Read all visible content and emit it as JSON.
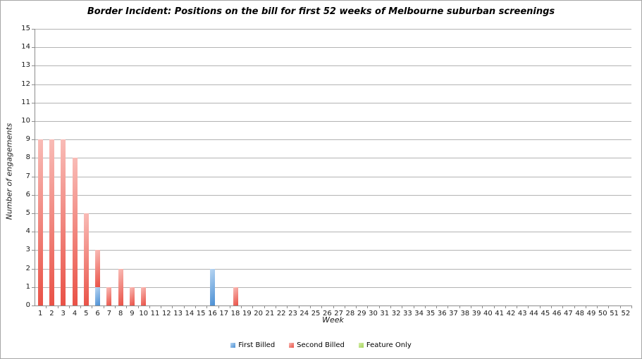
{
  "title": "Border Incident: Positions on the bill for first 52 weeks of Melbourne suburban screenings",
  "chart_data": {
    "type": "bar",
    "stacked": true,
    "title": "Border Incident: Positions on the bill for first 52 weeks of Melbourne suburban screenings",
    "xlabel": "Week",
    "ylabel": "Number of engagements",
    "ylim": [
      0,
      15
    ],
    "ytick_step": 1,
    "grid": true,
    "legend_position": "bottom",
    "categories": [
      1,
      2,
      3,
      4,
      5,
      6,
      7,
      8,
      9,
      10,
      11,
      12,
      13,
      14,
      15,
      16,
      17,
      18,
      19,
      20,
      21,
      22,
      23,
      24,
      25,
      26,
      27,
      28,
      29,
      30,
      31,
      32,
      33,
      34,
      35,
      36,
      37,
      38,
      39,
      40,
      41,
      42,
      43,
      44,
      45,
      46,
      47,
      48,
      49,
      50,
      51,
      52
    ],
    "series": [
      {
        "name": "First Billed",
        "color_light": "#b9d6f2",
        "color_dark": "#4a8fd4",
        "values": [
          0,
          0,
          0,
          0,
          0,
          1,
          0,
          0,
          0,
          0,
          0,
          0,
          0,
          0,
          0,
          2,
          0,
          0,
          0,
          0,
          0,
          0,
          0,
          0,
          0,
          0,
          0,
          0,
          0,
          0,
          0,
          0,
          0,
          0,
          0,
          0,
          0,
          0,
          0,
          0,
          0,
          0,
          0,
          0,
          0,
          0,
          0,
          0,
          0,
          0,
          0,
          0
        ]
      },
      {
        "name": "Second Billed",
        "color_light": "#f9bdb8",
        "color_dark": "#e95045",
        "values": [
          9,
          9,
          9,
          8,
          5,
          2,
          1,
          2,
          1,
          1,
          0,
          0,
          0,
          0,
          0,
          0,
          0,
          1,
          0,
          0,
          0,
          0,
          0,
          0,
          0,
          0,
          0,
          0,
          0,
          0,
          0,
          0,
          0,
          0,
          0,
          0,
          0,
          0,
          0,
          0,
          0,
          0,
          0,
          0,
          0,
          0,
          0,
          0,
          0,
          0,
          0,
          0
        ]
      },
      {
        "name": "Feature Only",
        "color_light": "#d5eda8",
        "color_dark": "#a4d55c",
        "values": [
          0,
          0,
          0,
          0,
          0,
          0,
          0,
          0,
          0,
          0,
          0,
          0,
          0,
          0,
          0,
          0,
          0,
          0,
          0,
          0,
          0,
          0,
          0,
          0,
          0,
          0,
          0,
          0,
          0,
          0,
          0,
          0,
          0,
          0,
          0,
          0,
          0,
          0,
          0,
          0,
          0,
          0,
          0,
          0,
          0,
          0,
          0,
          0,
          0,
          0,
          0,
          0
        ]
      }
    ]
  },
  "colors": {
    "gridline": "#b3b3b3",
    "axis": "#8c8c8c",
    "background": "#ffffff"
  }
}
